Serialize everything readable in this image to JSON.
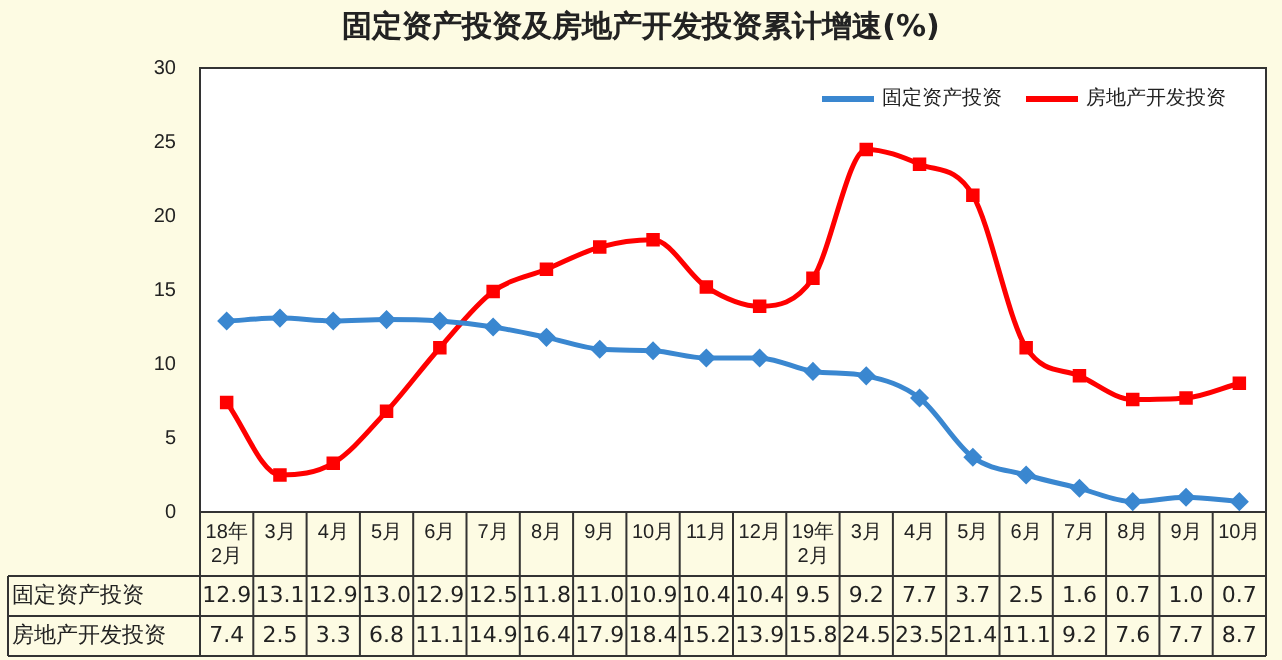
{
  "chart_data": {
    "type": "line",
    "title": "固定资产投资及房地产开发投资累计增速(%)",
    "categories": [
      "18年2月",
      "3月",
      "4月",
      "5月",
      "6月",
      "7月",
      "8月",
      "9月",
      "10月",
      "11月",
      "12月",
      "19年2月",
      "3月",
      "4月",
      "5月",
      "6月",
      "7月",
      "8月",
      "9月",
      "10月"
    ],
    "series": [
      {
        "name": "固定资产投资",
        "color": "#3a87d0",
        "marker": "diamond",
        "values": [
          12.9,
          13.1,
          12.9,
          13.0,
          12.9,
          12.5,
          11.8,
          11.0,
          10.9,
          10.4,
          10.4,
          9.5,
          9.2,
          7.7,
          3.7,
          2.5,
          1.6,
          0.7,
          1.0,
          0.7
        ],
        "value_labels": [
          "12.9",
          "13.1",
          "12.9",
          "13.0",
          "12.9",
          "12.5",
          "11.8",
          "11.0",
          "10.9",
          "10.4",
          "10.4",
          "9.5",
          "9.2",
          "7.7",
          "3.7",
          "2.5",
          "1.6",
          "0.7",
          "1.0",
          "0.7"
        ]
      },
      {
        "name": "房地产开发投资",
        "color": "#ff0000",
        "marker": "square",
        "values": [
          7.4,
          2.5,
          3.3,
          6.8,
          11.1,
          14.9,
          16.4,
          17.9,
          18.4,
          15.2,
          13.9,
          15.8,
          24.5,
          23.5,
          21.4,
          11.1,
          9.2,
          7.6,
          7.7,
          8.7
        ],
        "value_labels": [
          "7.4",
          "2.5",
          "3.3",
          "6.8",
          "11.1",
          "14.9",
          "16.4",
          "17.9",
          "18.4",
          "15.2",
          "13.9",
          "15.8",
          "24.5",
          "23.5",
          "21.4",
          "11.1",
          "9.2",
          "7.6",
          "7.7",
          "8.7"
        ]
      }
    ],
    "ylim": [
      0,
      30
    ],
    "yticks": [
      0,
      5,
      10,
      15,
      20,
      25,
      30
    ],
    "grid": false,
    "legend": "top right"
  }
}
